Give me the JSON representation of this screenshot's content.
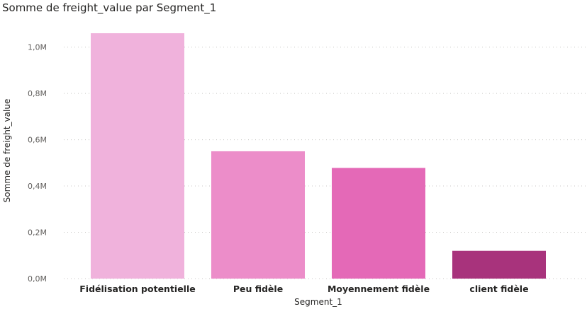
{
  "chart_data": {
    "type": "bar",
    "title": "Somme de freight_value par Segment_1",
    "xlabel": "Segment_1",
    "ylabel": "Somme de freight_value",
    "categories": [
      "Fidélisation potentielle",
      "Peu fidèle",
      "Moyennement fidèle",
      "client fidèle"
    ],
    "values": [
      1060000,
      550000,
      478000,
      120000
    ],
    "colors": [
      "#f0b2dc",
      "#ec8dc9",
      "#e469b7",
      "#a8337c"
    ],
    "ylim": [
      0,
      1060000
    ],
    "yticks": [
      {
        "value": 0,
        "label": "0,0M"
      },
      {
        "value": 200000,
        "label": "0,2M"
      },
      {
        "value": 400000,
        "label": "0,4M"
      },
      {
        "value": 600000,
        "label": "0,6M"
      },
      {
        "value": 800000,
        "label": "0,8M"
      },
      {
        "value": 1000000,
        "label": "1,0M"
      }
    ],
    "grid": true,
    "legend": "none"
  }
}
